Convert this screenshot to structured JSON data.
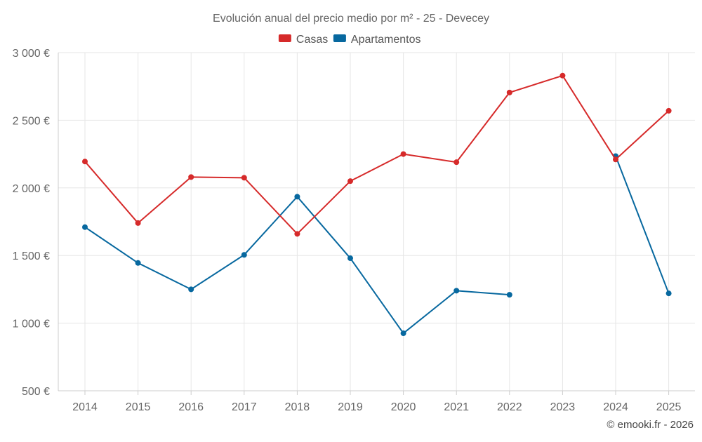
{
  "chart_data": {
    "type": "line",
    "title": "Evolución anual del precio medio por m² - 25 - Devecey",
    "categories": [
      "2014",
      "2015",
      "2016",
      "2017",
      "2018",
      "2019",
      "2020",
      "2021",
      "2022",
      "2023",
      "2024",
      "2025"
    ],
    "ylim": [
      500,
      3000
    ],
    "yticks": [
      500,
      1000,
      1500,
      2000,
      2500,
      3000
    ],
    "ytick_labels": [
      "500 €",
      "1 000 €",
      "1 500 €",
      "2 000 €",
      "2 500 €",
      "3 000 €"
    ],
    "grid": true,
    "legend_position": "top-center",
    "series": [
      {
        "name": "Casas",
        "color": "#d62a2a",
        "values": [
          2195,
          1740,
          2080,
          2075,
          1660,
          2050,
          2250,
          2190,
          2705,
          2830,
          2210,
          2570
        ]
      },
      {
        "name": "Apartamentos",
        "color": "#07689f",
        "values": [
          1710,
          1445,
          1250,
          1505,
          1935,
          1480,
          925,
          1240,
          1210,
          null,
          2235,
          1220
        ]
      }
    ],
    "credit": "© emooki.fr - 2026"
  }
}
